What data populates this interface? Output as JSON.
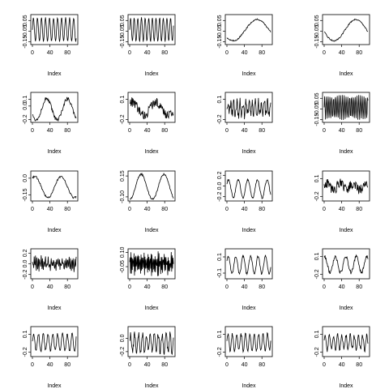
{
  "chart_data": [
    {
      "type": "line",
      "xlabel": "Index",
      "x_ticks": [
        "0",
        "40",
        "80"
      ],
      "y_ticks": [
        "0.05",
        "-0.05",
        "-0.15"
      ],
      "y_tick_values": [
        0.05,
        -0.05,
        -0.15
      ],
      "ylim": [
        -0.16,
        0.09
      ],
      "xlim": [
        0,
        100
      ],
      "shape": {
        "kind": "sine",
        "period": 9.2,
        "amp": 0.11,
        "center": -0.035,
        "noise": 0.005
      }
    },
    {
      "type": "line",
      "xlabel": "Index",
      "x_ticks": [
        "0",
        "40",
        "80"
      ],
      "y_ticks": [
        "0.05",
        "-0.05",
        "-0.15"
      ],
      "y_tick_values": [
        0.05,
        -0.05,
        -0.15
      ],
      "ylim": [
        -0.16,
        0.09
      ],
      "xlim": [
        0,
        100
      ],
      "shape": {
        "kind": "sine",
        "period": 8.3,
        "amp": 0.11,
        "center": -0.035,
        "noise": 0.005
      }
    },
    {
      "type": "line",
      "xlabel": "Index",
      "x_ticks": [
        "0",
        "40",
        "80"
      ],
      "y_ticks": [
        "0.05",
        "-0.05",
        "-0.15"
      ],
      "y_tick_values": [
        0.05,
        -0.05,
        -0.15
      ],
      "ylim": [
        -0.16,
        0.09
      ],
      "xlim": [
        0,
        100
      ],
      "shape": {
        "kind": "sine",
        "period": 110,
        "amp": 0.1,
        "center": -0.04,
        "phase": 3.9,
        "noise": 0.006
      }
    },
    {
      "type": "line",
      "xlabel": "Index",
      "x_ticks": [
        "0",
        "40",
        "80"
      ],
      "y_ticks": [
        "0.05",
        "-0.05",
        "-0.15"
      ],
      "y_tick_values": [
        0.05,
        -0.05,
        -0.15
      ],
      "ylim": [
        -0.16,
        0.09
      ],
      "xlim": [
        0,
        100
      ],
      "shape": {
        "kind": "sine",
        "period": 100,
        "amp": 0.1,
        "center": -0.04,
        "phase": 3.3,
        "noise": 0.006
      }
    },
    {
      "type": "line",
      "xlabel": "Index",
      "x_ticks": [
        "0",
        "40",
        "80"
      ],
      "y_ticks": [
        "0.1",
        "0.0",
        "-0.2"
      ],
      "y_tick_values": [
        0.1,
        0.0,
        -0.2
      ],
      "ylim": [
        -0.22,
        0.18
      ],
      "xlim": [
        0,
        100
      ],
      "shape": {
        "kind": "sine",
        "period": 48,
        "amp": 0.16,
        "center": -0.05,
        "phase": 3.6,
        "noise": 0.03
      }
    },
    {
      "type": "line",
      "xlabel": "Index",
      "x_ticks": [
        "0",
        "40",
        "80"
      ],
      "y_ticks": [
        "0.1",
        "-0.2"
      ],
      "y_tick_values": [
        0.1,
        -0.2
      ],
      "ylim": [
        -0.22,
        0.18
      ],
      "xlim": [
        0,
        100
      ],
      "shape": {
        "kind": "sine",
        "period": 55,
        "amp": 0.1,
        "center": -0.04,
        "phase": 1.0,
        "noise": 0.07
      }
    },
    {
      "type": "line",
      "xlabel": "Index",
      "x_ticks": [
        "0",
        "40",
        "80"
      ],
      "y_ticks": [
        "0.1",
        "-0.2"
      ],
      "y_tick_values": [
        0.1,
        -0.2
      ],
      "ylim": [
        -0.22,
        0.18
      ],
      "xlim": [
        0,
        100
      ],
      "shape": {
        "kind": "sine",
        "period": 7,
        "amp": 0.08,
        "center": -0.04,
        "noise": 0.09
      }
    },
    {
      "type": "line",
      "xlabel": "Index",
      "x_ticks": [
        "0",
        "40",
        "80"
      ],
      "y_ticks": [
        "0.05",
        "-0.05",
        "-0.15"
      ],
      "y_tick_values": [
        0.05,
        -0.05,
        -0.15
      ],
      "ylim": [
        -0.16,
        0.09
      ],
      "xlim": [
        0,
        100
      ],
      "shape": {
        "kind": "sine",
        "period": 4.1,
        "amp": 0.11,
        "center": -0.035,
        "noise": 0.008
      }
    },
    {
      "type": "line",
      "xlabel": "Index",
      "x_ticks": [
        "0",
        "40",
        "80"
      ],
      "y_ticks": [
        "0.0",
        "-0.15"
      ],
      "y_tick_values": [
        0.0,
        -0.15
      ],
      "ylim": [
        -0.19,
        0.05
      ],
      "xlim": [
        0,
        100
      ],
      "shape": {
        "kind": "sine",
        "period": 60,
        "amp": 0.095,
        "center": -0.08,
        "phase": 1.0,
        "noise": 0.008
      }
    },
    {
      "type": "line",
      "xlabel": "Index",
      "x_ticks": [
        "0",
        "40",
        "80"
      ],
      "y_ticks": [
        "0.15",
        "-0.10"
      ],
      "y_tick_values": [
        0.15,
        -0.1
      ],
      "ylim": [
        -0.13,
        0.19
      ],
      "xlim": [
        0,
        100
      ],
      "shape": {
        "kind": "sine",
        "period": 52,
        "amp": 0.15,
        "center": 0.02,
        "phase": -1.6,
        "noise": 0.01
      }
    },
    {
      "type": "line",
      "xlabel": "Index",
      "x_ticks": [
        "0",
        "40",
        "80"
      ],
      "y_ticks": [
        "0.2",
        "0.0",
        "-0.2"
      ],
      "y_tick_values": [
        0.2,
        0.0,
        -0.2
      ],
      "ylim": [
        -0.25,
        0.25
      ],
      "xlim": [
        0,
        100
      ],
      "shape": {
        "kind": "sine",
        "period": 22,
        "amp": 0.17,
        "center": -0.05,
        "phase": 0.5,
        "noise": 0.02
      }
    },
    {
      "type": "line",
      "xlabel": "Index",
      "x_ticks": [
        "0",
        "40",
        "80"
      ],
      "y_ticks": [
        "0.1",
        "-0.2"
      ],
      "y_tick_values": [
        0.1,
        -0.2
      ],
      "ylim": [
        -0.25,
        0.2
      ],
      "xlim": [
        0,
        100
      ],
      "shape": {
        "kind": "sine",
        "period": 30,
        "amp": 0.06,
        "center": -0.04,
        "phase": 0.3,
        "noise": 0.09
      }
    },
    {
      "type": "line",
      "xlabel": "Index",
      "x_ticks": [
        "0",
        "40",
        "80"
      ],
      "y_ticks": [
        "0.2",
        "0.0",
        "-0.2"
      ],
      "y_tick_values": [
        0.2,
        0.0,
        -0.2
      ],
      "ylim": [
        -0.25,
        0.25
      ],
      "xlim": [
        0,
        100
      ],
      "shape": {
        "kind": "sine",
        "period": 3.2,
        "amp": 0.08,
        "center": 0.0,
        "noise": 0.09
      }
    },
    {
      "type": "line",
      "xlabel": "Index",
      "x_ticks": [
        "0",
        "40",
        "80"
      ],
      "y_ticks": [
        "0.10",
        "-0.05"
      ],
      "y_tick_values": [
        0.1,
        -0.05
      ],
      "ylim": [
        -0.16,
        0.12
      ],
      "xlim": [
        0,
        100
      ],
      "shape": {
        "kind": "sine",
        "period": 2.3,
        "amp": 0.1,
        "center": -0.02,
        "noise": 0.04
      }
    },
    {
      "type": "line",
      "xlabel": "Index",
      "x_ticks": [
        "0",
        "40",
        "80"
      ],
      "y_ticks": [
        "0.1",
        "-0.1"
      ],
      "y_tick_values": [
        0.1,
        -0.1
      ],
      "ylim": [
        -0.15,
        0.18
      ],
      "xlim": [
        0,
        100
      ],
      "shape": {
        "kind": "sine",
        "period": 17,
        "amp": 0.11,
        "center": 0.0,
        "phase": 0.4,
        "noise": 0.015
      }
    },
    {
      "type": "line",
      "xlabel": "Index",
      "x_ticks": [
        "0",
        "40",
        "80"
      ],
      "y_ticks": [
        "0.1",
        "-0.2"
      ],
      "y_tick_values": [
        0.1,
        -0.2
      ],
      "ylim": [
        -0.25,
        0.2
      ],
      "xlim": [
        0,
        100
      ],
      "shape": {
        "kind": "sine",
        "period": 24,
        "amp": 0.13,
        "center": -0.04,
        "phase": 1.2,
        "noise": 0.03
      }
    },
    {
      "type": "line",
      "xlabel": "Index",
      "x_ticks": [
        "0",
        "40",
        "80"
      ],
      "y_ticks": [
        "0.1",
        "-0.2"
      ],
      "y_tick_values": [
        0.1,
        -0.2
      ],
      "ylim": [
        -0.25,
        0.2
      ],
      "xlim": [
        0,
        100
      ],
      "shape": {
        "kind": "sine",
        "period": 11,
        "amp": 0.14,
        "center": -0.04,
        "noise": 0.03
      }
    },
    {
      "type": "line",
      "xlabel": "Index",
      "x_ticks": [
        "0",
        "40",
        "80"
      ],
      "y_ticks": [
        "0.0",
        "-0.2"
      ],
      "y_tick_values": [
        0.0,
        -0.2
      ],
      "ylim": [
        -0.25,
        0.15
      ],
      "xlim": [
        0,
        100
      ],
      "shape": {
        "kind": "sine",
        "period": 9,
        "amp": 0.13,
        "center": -0.07,
        "noise": 0.05
      }
    },
    {
      "type": "line",
      "xlabel": "Index",
      "x_ticks": [
        "0",
        "40",
        "80"
      ],
      "y_ticks": [
        "0.1",
        "-0.2"
      ],
      "y_tick_values": [
        0.1,
        -0.2
      ],
      "ylim": [
        -0.25,
        0.2
      ],
      "xlim": [
        0,
        100
      ],
      "shape": {
        "kind": "sine",
        "period": 10,
        "amp": 0.14,
        "center": -0.04,
        "noise": 0.03
      }
    },
    {
      "type": "line",
      "xlabel": "Index",
      "x_ticks": [
        "0",
        "40",
        "80"
      ],
      "y_ticks": [
        "0.1",
        "-0.2"
      ],
      "y_tick_values": [
        0.1,
        -0.2
      ],
      "ylim": [
        -0.25,
        0.2
      ],
      "xlim": [
        0,
        100
      ],
      "shape": {
        "kind": "sine",
        "period": 9.5,
        "amp": 0.12,
        "center": -0.04,
        "noise": 0.04
      }
    }
  ]
}
